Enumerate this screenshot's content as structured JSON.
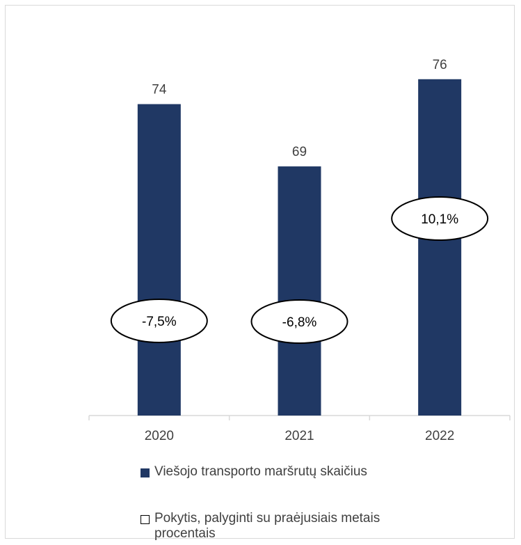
{
  "chart_data": {
    "type": "bar",
    "categories": [
      "2020",
      "2021",
      "2022"
    ],
    "series": [
      {
        "name": "Viešojo transporto maršrutų skaičius",
        "values": [
          74,
          69,
          76
        ],
        "data_labels": [
          "74",
          "69",
          "76"
        ],
        "color": "#203864"
      },
      {
        "name": "Pokytis, palyginti su praėjusiais metais procentais",
        "values": [
          -7.5,
          -6.8,
          10.1
        ],
        "data_labels": [
          "-7,5%",
          "-6,8%",
          "10,1%"
        ],
        "marker": "ellipse-callout"
      }
    ],
    "ylim": [
      49,
      78
    ],
    "grid": false,
    "legend_position": "bottom"
  },
  "legend": {
    "bars_label": "Viešojo transporto maršrutų skaičius",
    "change_label_line1": "Pokytis, palyginti su praėjusiais metais",
    "change_label_line2": "procentais"
  },
  "colors": {
    "bar": "#203864",
    "axis": "#d9d9d9",
    "text": "#404040"
  }
}
